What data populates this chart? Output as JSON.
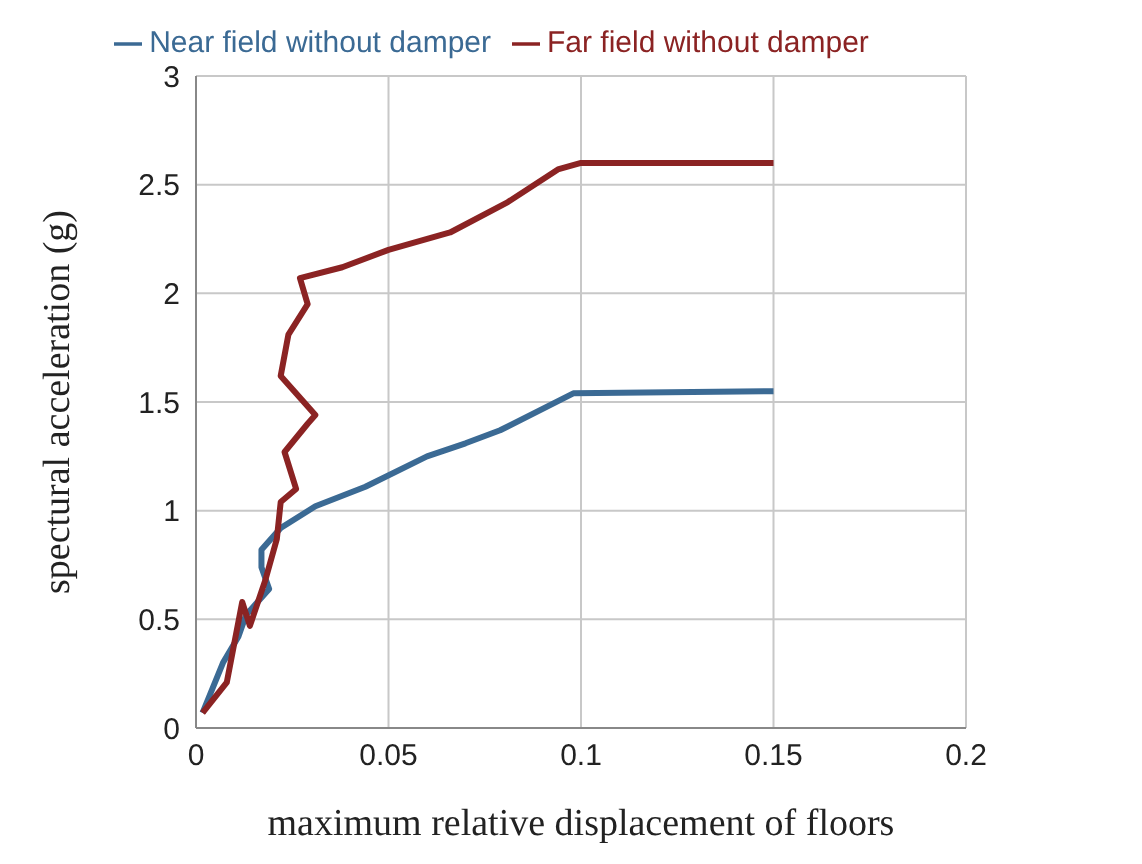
{
  "chart_data": {
    "type": "line",
    "xlabel": "maximum relative displacement of floors",
    "ylabel": "spectural acceleration (g)",
    "xlim": [
      0,
      0.2
    ],
    "xticks": [
      0,
      0.05,
      0.1,
      0.15,
      0.2
    ],
    "ylim": [
      0,
      3
    ],
    "yticks": [
      0,
      0.5,
      1,
      1.5,
      2,
      2.5,
      3
    ],
    "grid": true,
    "legend": "top",
    "marker": "none",
    "series": [
      {
        "name": "Near field without damper",
        "color": "#3b6a94",
        "x": [
          0.0017,
          0.007,
          0.011,
          0.013,
          0.019,
          0.017,
          0.017,
          0.022,
          0.031,
          0.044,
          0.06,
          0.07,
          0.079,
          0.098,
          0.15
        ],
        "values": [
          0.07,
          0.3,
          0.42,
          0.52,
          0.64,
          0.74,
          0.82,
          0.92,
          1.02,
          1.11,
          1.25,
          1.31,
          1.37,
          1.54,
          1.55
        ]
      },
      {
        "name": "Far field without damper",
        "color": "#8b2323",
        "x": [
          0.0017,
          0.008,
          0.012,
          0.014,
          0.018,
          0.021,
          0.022,
          0.026,
          0.023,
          0.029,
          0.031,
          0.022,
          0.024,
          0.029,
          0.027,
          0.038,
          0.05,
          0.066,
          0.081,
          0.094,
          0.1,
          0.15
        ],
        "values": [
          0.07,
          0.21,
          0.58,
          0.47,
          0.68,
          0.87,
          1.04,
          1.1,
          1.27,
          1.4,
          1.44,
          1.62,
          1.81,
          1.95,
          2.07,
          2.12,
          2.2,
          2.28,
          2.42,
          2.57,
          2.6,
          2.6
        ]
      }
    ]
  }
}
